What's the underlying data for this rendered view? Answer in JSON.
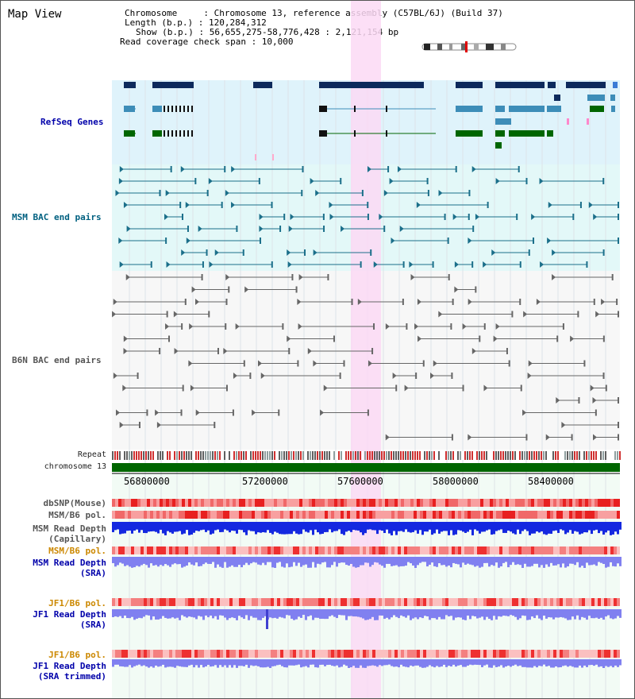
{
  "header": {
    "title": "Map View",
    "chromosome_line": "Chromosome     : Chromosome 13, reference assembly (C57BL/6J) (Build 37)",
    "length_line": "Length (b.p.) : 120,284,312",
    "show_line": "Show (b.p.) : 56,655,275-58,776,428 : 2,121,154 bp",
    "coverage_line": "Read coverage check span : 10,000"
  },
  "tracks": {
    "refseq": "RefSeq Genes",
    "msm_bac": "MSM BAC end pairs",
    "b6n_bac": "B6N BAC end pairs",
    "repeat": "Repeat",
    "chromosome": "chromosome 13",
    "dbsnp": "dbSNP(Mouse)",
    "msm_b6_pol_1": "MSM/B6 pol.",
    "msm_read_depth_cap_1": "MSM Read Depth",
    "msm_read_depth_cap_2": "(Capillary)",
    "msm_b6_pol_2": "MSM/B6 pol.",
    "msm_read_depth_sra_1": "MSM Read Depth",
    "msm_read_depth_sra_2": "(SRA)",
    "jf1_b6_pol_1": "JF1/B6 pol.",
    "jf1_read_depth_sra_1": "JF1 Read Depth",
    "jf1_read_depth_sra_2": "(SRA)",
    "jf1_b6_pol_2": "JF1/B6 pol.",
    "jf1_read_depth_trim_1": "JF1 Read Depth",
    "jf1_read_depth_trim_2": "(SRA trimmed)"
  },
  "axis": {
    "ticks": [
      "56800000",
      "57200000",
      "57600000",
      "58000000",
      "58400000"
    ]
  },
  "colors": {
    "refseq_bg": "#dff3fb",
    "bac_bg": "#e3f8f8",
    "highlight": "#fcd9f4",
    "refseq_dark": "#0d2a5c",
    "refseq_mid": "#3d8db8",
    "refseq_green": "#006600",
    "msm_bac": "#1b6f8a",
    "b6n_bac": "#666666",
    "chromosome": "#006600",
    "snp_red": "#f06060",
    "depth_blue": "#1428e0",
    "depth_light": "#8080f0"
  }
}
